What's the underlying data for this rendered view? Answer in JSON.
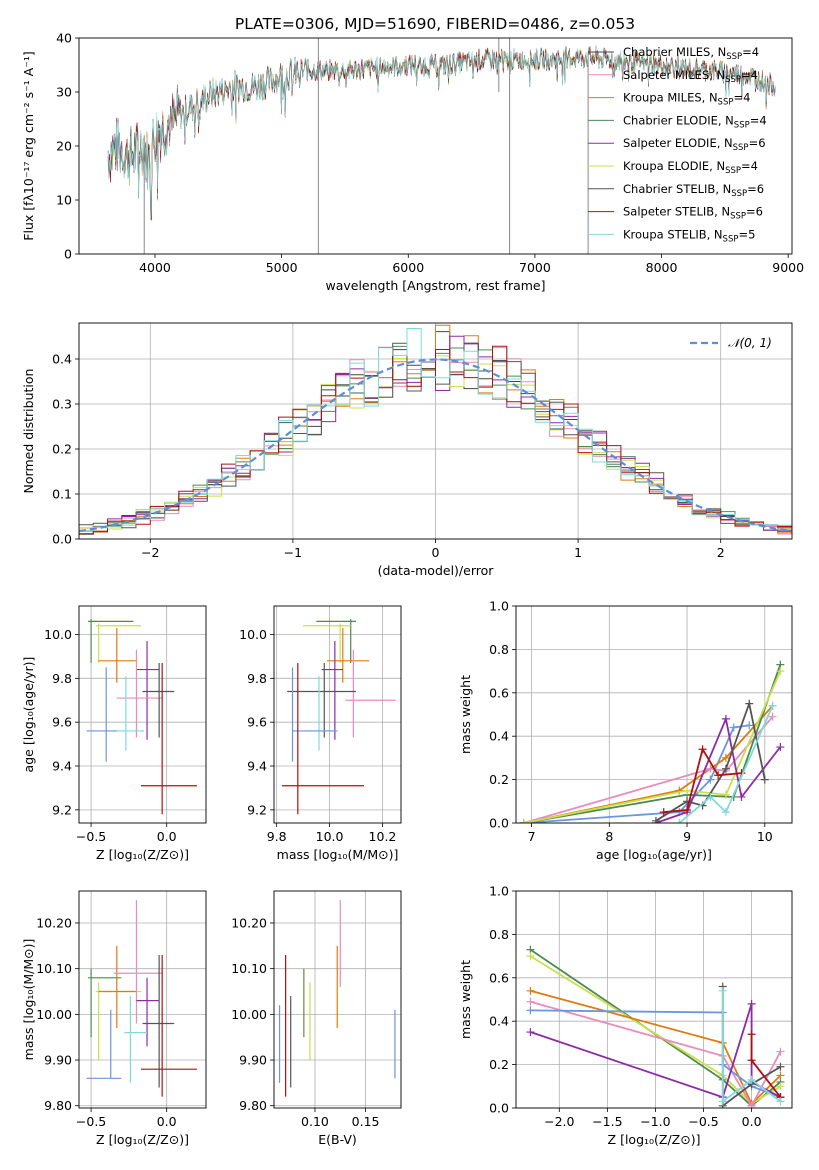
{
  "figure": {
    "title": "PLATE=0306, MJD=51690, FIBERID=0486, z=0.053"
  },
  "model_colors": [
    "#444444",
    "#e98bbf",
    "#e07b10",
    "#4e8a4e",
    "#8e2aa8",
    "#c8e04a",
    "#555555",
    "#b01010",
    "#7fdada"
  ],
  "extra_colors": {
    "blue": "#6a96dc",
    "olive": "#6a8a3a"
  },
  "chart_data": [
    {
      "id": "spectrum",
      "type": "line",
      "title": "PLATE=0306, MJD=51690, FIBERID=0486, z=0.053",
      "xlabel": "wavelength [Angstrom, rest frame]",
      "ylabel": "Flux [fλ10⁻¹⁷ erg cm⁻² s⁻¹ A⁻¹]",
      "xlim": [
        3400,
        9030
      ],
      "ylim": [
        0,
        40
      ],
      "xticks": [
        4000,
        5000,
        6000,
        7000,
        8000,
        9000
      ],
      "yticks": [
        0,
        10,
        20,
        30,
        40
      ],
      "grid": false,
      "legend_position": "upper-right",
      "legend": [
        "Chabrier MILES, N_SSP=4",
        "Salpeter MILES, N_SSP=4",
        "Kroupa MILES, N_SSP=4",
        "Chabrier ELODIE, N_SSP=4",
        "Salpeter ELODIE, N_SSP=6",
        "Kroupa ELODIE, N_SSP=4",
        "Chabrier STELIB, N_SSP=6",
        "Salpeter STELIB, N_SSP=6",
        "Kroupa STELIB, N_SSP=5"
      ],
      "continuum_anchors": [
        [
          3630,
          18
        ],
        [
          3700,
          20
        ],
        [
          3800,
          18
        ],
        [
          3900,
          20
        ],
        [
          3950,
          17
        ],
        [
          4000,
          22
        ],
        [
          4100,
          24
        ],
        [
          4200,
          26
        ],
        [
          4400,
          29
        ],
        [
          4600,
          31
        ],
        [
          4800,
          31
        ],
        [
          5000,
          33
        ],
        [
          5200,
          34
        ],
        [
          5500,
          34
        ],
        [
          6000,
          35
        ],
        [
          6300,
          35
        ],
        [
          6600,
          36
        ],
        [
          7000,
          36
        ],
        [
          7400,
          36.5
        ],
        [
          7600,
          36
        ],
        [
          8000,
          35
        ],
        [
          8400,
          34
        ],
        [
          8700,
          33
        ],
        [
          8900,
          31
        ]
      ],
      "spikes": [
        {
          "x": 3915,
          "ymin": 0,
          "ymax": 22
        },
        {
          "x": 5290,
          "ymin": 0,
          "ymax": 40
        },
        {
          "x": 6715,
          "ymin": 30,
          "ymax": 40
        },
        {
          "x": 6800,
          "ymin": 0,
          "ymax": 40
        },
        {
          "x": 7420,
          "ymin": 0,
          "ymax": 36
        }
      ]
    },
    {
      "id": "residuals",
      "type": "histogram",
      "xlabel": "(data-model)/error",
      "ylabel": "Normed distribution",
      "xlim": [
        -2.5,
        2.5
      ],
      "ylim": [
        0,
        0.48
      ],
      "xticks": [
        -2,
        -1,
        0,
        1,
        2
      ],
      "yticks": [
        0,
        0.1,
        0.2,
        0.3,
        0.4
      ],
      "grid": true,
      "bin_width": 0.1,
      "gaussian": {
        "mu": 0,
        "sigma": 1,
        "color": "#5b8fd8"
      },
      "legend_position": "upper-right",
      "legend": [
        "𝒩(0, 1)"
      ]
    },
    {
      "id": "age-vs-Z",
      "type": "errorbar",
      "xlabel": "Z [log₁₀(Z/Z⊙)]",
      "ylabel": "age  [log₁₀(age/yr)]",
      "xlim": [
        -0.58,
        0.26
      ],
      "ylim": [
        9.14,
        10.13
      ],
      "xticks": [
        -0.5,
        0.0
      ],
      "yticks": [
        9.2,
        9.4,
        9.6,
        9.8,
        10.0
      ],
      "grid": true,
      "points": [
        {
          "color": "#4e8a4e",
          "x": -0.5,
          "xlo": -0.52,
          "xhi": -0.22,
          "y": 10.06,
          "ylo": 9.87,
          "yhi": 10.07
        },
        {
          "color": "#c8e04a",
          "x": -0.45,
          "xlo": -0.47,
          "xhi": -0.17,
          "y": 10.04,
          "ylo": 9.87,
          "yhi": 10.05
        },
        {
          "color": "#e07b10",
          "x": -0.33,
          "xlo": -0.45,
          "xhi": -0.2,
          "y": 9.88,
          "ylo": 9.78,
          "yhi": 10.03
        },
        {
          "color": "#8e2aa8",
          "x": -0.13,
          "xlo": -0.2,
          "xhi": -0.05,
          "y": 9.84,
          "ylo": 9.52,
          "yhi": 9.97
        },
        {
          "color": "#e98bbf",
          "x": -0.2,
          "xlo": -0.33,
          "xhi": -0.03,
          "y": 9.71,
          "ylo": 9.53,
          "yhi": 9.93
        },
        {
          "color": "#555555",
          "x": -0.05,
          "xlo": -0.16,
          "xhi": 0.05,
          "y": 9.74,
          "ylo": 9.53,
          "yhi": 9.87
        },
        {
          "color": "#7fdada",
          "x": -0.27,
          "xlo": -0.35,
          "xhi": -0.15,
          "y": 9.56,
          "ylo": 9.47,
          "yhi": 9.81
        },
        {
          "color": "#6a96dc",
          "x": -0.4,
          "xlo": -0.53,
          "xhi": -0.33,
          "y": 9.56,
          "ylo": 9.42,
          "yhi": 9.85
        },
        {
          "color": "#b01010",
          "x": -0.03,
          "xlo": -0.17,
          "xhi": 0.2,
          "y": 9.31,
          "ylo": 9.18,
          "yhi": 9.87
        }
      ]
    },
    {
      "id": "age-vs-mass",
      "type": "errorbar",
      "xlabel": "mass [log₁₀(M/M⊙)]",
      "ylabel": "",
      "xlim": [
        9.79,
        10.27
      ],
      "ylim": [
        9.14,
        10.13
      ],
      "xticks": [
        9.8,
        10.0,
        10.2
      ],
      "yticks": [
        9.2,
        9.4,
        9.6,
        9.8,
        10.0
      ],
      "grid": true,
      "points": [
        {
          "color": "#4e8a4e",
          "x": 10.08,
          "xlo": 9.95,
          "xhi": 10.1,
          "y": 10.06,
          "ylo": 9.87,
          "yhi": 10.07
        },
        {
          "color": "#c8e04a",
          "x": 10.04,
          "xlo": 9.9,
          "xhi": 10.08,
          "y": 10.04,
          "ylo": 9.87,
          "yhi": 10.05
        },
        {
          "color": "#e07b10",
          "x": 10.05,
          "xlo": 9.99,
          "xhi": 10.15,
          "y": 9.88,
          "ylo": 9.78,
          "yhi": 10.03
        },
        {
          "color": "#8e2aa8",
          "x": 10.02,
          "xlo": 9.97,
          "xhi": 10.05,
          "y": 9.84,
          "ylo": 9.52,
          "yhi": 9.97
        },
        {
          "color": "#e98bbf",
          "x": 10.09,
          "xlo": 10.06,
          "xhi": 10.25,
          "y": 9.7,
          "ylo": 9.53,
          "yhi": 9.93
        },
        {
          "color": "#555555",
          "x": 9.98,
          "xlo": 9.84,
          "xhi": 10.1,
          "y": 9.74,
          "ylo": 9.53,
          "yhi": 9.87
        },
        {
          "color": "#7fdada",
          "x": 9.96,
          "xlo": 9.91,
          "xhi": 10.01,
          "y": 9.56,
          "ylo": 9.47,
          "yhi": 9.81
        },
        {
          "color": "#6a96dc",
          "x": 9.86,
          "xlo": 9.86,
          "xhi": 10.03,
          "y": 9.56,
          "ylo": 9.42,
          "yhi": 9.85
        },
        {
          "color": "#b01010",
          "x": 9.88,
          "xlo": 9.82,
          "xhi": 10.13,
          "y": 9.31,
          "ylo": 9.18,
          "yhi": 9.87
        }
      ]
    },
    {
      "id": "weight-vs-age",
      "type": "line",
      "xlabel": "age  [log₁₀(age/yr)]",
      "ylabel": "mass weight",
      "xlim": [
        6.8,
        10.35
      ],
      "ylim": [
        0,
        1.0
      ],
      "xticks": [
        7,
        8,
        9,
        10
      ],
      "yticks": [
        0,
        0.2,
        0.4,
        0.6,
        0.8,
        1.0
      ],
      "grid": true,
      "series": [
        {
          "color": "#6a96dc",
          "points": [
            [
              6.9,
              0
            ],
            [
              8.9,
              0.05
            ],
            [
              9.3,
              0.2
            ],
            [
              9.6,
              0.44
            ],
            [
              9.8,
              0.45
            ]
          ]
        },
        {
          "color": "#e07b10",
          "points": [
            [
              6.9,
              0
            ],
            [
              8.9,
              0.15
            ],
            [
              9.5,
              0.3
            ],
            [
              10.1,
              0.54
            ]
          ]
        },
        {
          "color": "#e98bbf",
          "points": [
            [
              6.9,
              0
            ],
            [
              9.3,
              0.25
            ],
            [
              9.5,
              0.24
            ],
            [
              10.1,
              0.49
            ]
          ]
        },
        {
          "color": "#4e8a4e",
          "points": [
            [
              6.9,
              0
            ],
            [
              9.0,
              0.13
            ],
            [
              9.6,
              0.12
            ],
            [
              10.2,
              0.73
            ]
          ]
        },
        {
          "color": "#c8e04a",
          "points": [
            [
              6.9,
              0
            ],
            [
              9.0,
              0.15
            ],
            [
              9.5,
              0.13
            ],
            [
              10.2,
              0.7
            ]
          ]
        },
        {
          "color": "#8e2aa8",
          "points": [
            [
              8.6,
              0.0
            ],
            [
              9.0,
              0.05
            ],
            [
              9.5,
              0.48
            ],
            [
              9.7,
              0.12
            ],
            [
              10.2,
              0.35
            ]
          ]
        },
        {
          "color": "#555555",
          "points": [
            [
              8.6,
              0.01
            ],
            [
              9.0,
              0.1
            ],
            [
              9.2,
              0.08
            ],
            [
              9.5,
              0.25
            ],
            [
              9.8,
              0.55
            ],
            [
              10.0,
              0.2
            ]
          ]
        },
        {
          "color": "#b01010",
          "points": [
            [
              8.7,
              0.05
            ],
            [
              9.0,
              0.06
            ],
            [
              9.2,
              0.34
            ],
            [
              9.4,
              0.22
            ],
            [
              9.7,
              0.23
            ]
          ]
        },
        {
          "color": "#7fdada",
          "points": [
            [
              8.9,
              0.0
            ],
            [
              9.3,
              0.12
            ],
            [
              9.5,
              0.05
            ],
            [
              10.1,
              0.54
            ]
          ]
        }
      ]
    },
    {
      "id": "mass-vs-Z",
      "type": "errorbar",
      "xlabel": "Z [log₁₀(Z/Z⊙)]",
      "ylabel": "mass [log₁₀(M/M⊙)]",
      "xlim": [
        -0.58,
        0.26
      ],
      "ylim": [
        9.795,
        10.27
      ],
      "xticks": [
        -0.5,
        0.0
      ],
      "yticks": [
        9.8,
        9.9,
        10.0,
        10.1,
        10.2
      ],
      "grid": true,
      "points": [
        {
          "color": "#4e8a4e",
          "x": -0.5,
          "xlo": -0.52,
          "xhi": -0.3,
          "y": 10.08,
          "ylo": 9.95,
          "yhi": 10.1
        },
        {
          "color": "#c8e04a",
          "x": -0.45,
          "xlo": -0.47,
          "xhi": -0.17,
          "y": 10.05,
          "ylo": 9.9,
          "yhi": 10.07
        },
        {
          "color": "#e07b10",
          "x": -0.33,
          "xlo": -0.45,
          "xhi": -0.2,
          "y": 10.05,
          "ylo": 9.97,
          "yhi": 10.15
        },
        {
          "color": "#e98bbf",
          "x": -0.2,
          "xlo": -0.35,
          "xhi": -0.03,
          "y": 10.09,
          "ylo": 9.98,
          "yhi": 10.25
        },
        {
          "color": "#8e2aa8",
          "x": -0.13,
          "xlo": -0.2,
          "xhi": -0.05,
          "y": 10.03,
          "ylo": 9.93,
          "yhi": 10.08
        },
        {
          "color": "#7fdada",
          "x": -0.24,
          "xlo": -0.28,
          "xhi": -0.13,
          "y": 9.96,
          "ylo": 9.85,
          "yhi": 10.04
        },
        {
          "color": "#555555",
          "x": -0.05,
          "xlo": -0.16,
          "xhi": 0.05,
          "y": 9.98,
          "ylo": 9.84,
          "yhi": 10.13
        },
        {
          "color": "#6a96dc",
          "x": -0.37,
          "xlo": -0.53,
          "xhi": -0.3,
          "y": 9.86,
          "ylo": 9.86,
          "yhi": 10.01
        },
        {
          "color": "#b01010",
          "x": -0.03,
          "xlo": -0.17,
          "xhi": 0.2,
          "y": 9.88,
          "ylo": 9.82,
          "yhi": 10.13
        }
      ]
    },
    {
      "id": "mass-vs-ebv",
      "type": "errorbar",
      "xlabel": "E(B-V)",
      "ylabel": "",
      "xlim": [
        0.0595,
        0.185
      ],
      "ylim": [
        9.795,
        10.27
      ],
      "xticks": [
        0.1,
        0.15
      ],
      "xtick_labels": [
        "0.10",
        "0.15"
      ],
      "yticks": [
        9.8,
        9.9,
        10.0,
        10.1,
        10.2
      ],
      "grid": true,
      "points": [
        {
          "color": "#6a96dc",
          "x": 0.065,
          "ylo": 9.85,
          "yhi": 10.02
        },
        {
          "color": "#b01010",
          "x": 0.071,
          "ylo": 9.82,
          "yhi": 10.13
        },
        {
          "color": "#555555",
          "x": 0.076,
          "ylo": 9.84,
          "yhi": 10.04
        },
        {
          "color": "#6a8a3a",
          "x": 0.089,
          "ylo": 9.95,
          "yhi": 10.1
        },
        {
          "color": "#c8e04a",
          "x": 0.095,
          "ylo": 9.9,
          "yhi": 10.07
        },
        {
          "color": "#e07b10",
          "x": 0.122,
          "ylo": 9.97,
          "yhi": 10.15
        },
        {
          "color": "#e98bbf",
          "x": 0.125,
          "ylo": 10.06,
          "yhi": 10.25
        },
        {
          "color": "#6a96dc",
          "x": 0.179,
          "ylo": 9.86,
          "yhi": 10.01
        }
      ]
    },
    {
      "id": "weight-vs-Z",
      "type": "line",
      "xlabel": "Z [log₁₀(Z/Z⊙)]",
      "ylabel": "mass weight",
      "xlim": [
        -2.45,
        0.42
      ],
      "ylim": [
        0,
        1.0
      ],
      "xticks": [
        -2.0,
        -1.5,
        -1.0,
        -0.5,
        0.0
      ],
      "xtick_labels": [
        "−2.0",
        "−1.5",
        "−1.0",
        "−0.5",
        "0.0"
      ],
      "yticks": [
        0,
        0.2,
        0.4,
        0.6,
        0.8,
        1.0
      ],
      "grid": true,
      "series": [
        {
          "color": "#4e8a4e",
          "points": [
            [
              -2.3,
              0.73
            ],
            [
              -0.3,
              0.13
            ],
            [
              0.0,
              0.01
            ],
            [
              0.3,
              0.12
            ]
          ]
        },
        {
          "color": "#c8e04a",
          "points": [
            [
              -2.3,
              0.7
            ],
            [
              -0.3,
              0.15
            ],
            [
              0.0,
              0.02
            ],
            [
              0.3,
              0.1
            ]
          ]
        },
        {
          "color": "#e07b10",
          "points": [
            [
              -2.3,
              0.54
            ],
            [
              -0.3,
              0.3
            ],
            [
              0.0,
              0.02
            ],
            [
              0.3,
              0.15
            ]
          ]
        },
        {
          "color": "#e98bbf",
          "points": [
            [
              -2.3,
              0.49
            ],
            [
              -0.3,
              0.24
            ],
            [
              0.0,
              0.01
            ],
            [
              0.3,
              0.26
            ]
          ]
        },
        {
          "color": "#6a96dc",
          "points": [
            [
              -2.3,
              0.45
            ],
            [
              -0.3,
              0.44
            ],
            [
              -0.3,
              0.2
            ],
            [
              0.0,
              0.1
            ],
            [
              0.3,
              0.05
            ]
          ]
        },
        {
          "color": "#8e2aa8",
          "points": [
            [
              -2.3,
              0.35
            ],
            [
              -0.3,
              0.05
            ],
            [
              0.0,
              0.48
            ],
            [
              0.0,
              0.12
            ],
            [
              0.3,
              0.05
            ]
          ]
        },
        {
          "color": "#555555",
          "points": [
            [
              -0.3,
              0.56
            ],
            [
              -0.3,
              0.01
            ],
            [
              0.0,
              0.11
            ],
            [
              0.3,
              0.19
            ]
          ]
        },
        {
          "color": "#b01010",
          "points": [
            [
              0.0,
              0.34
            ],
            [
              0.0,
              0.22
            ],
            [
              0.3,
              0.05
            ]
          ]
        },
        {
          "color": "#7fdada",
          "points": [
            [
              -0.3,
              0.54
            ],
            [
              -0.3,
              0.03
            ],
            [
              0.0,
              0.13
            ],
            [
              0.3,
              0.03
            ]
          ]
        }
      ]
    }
  ]
}
